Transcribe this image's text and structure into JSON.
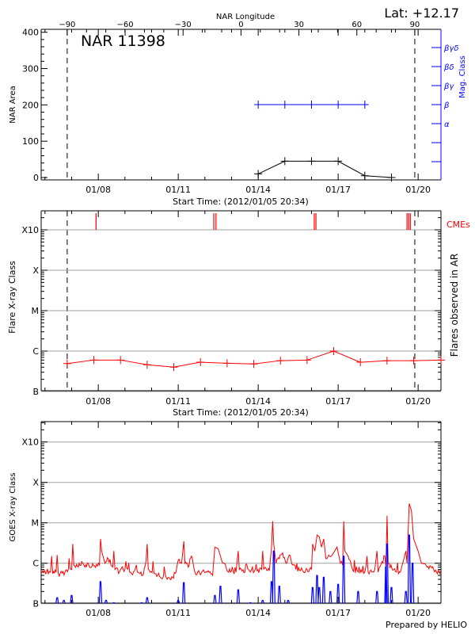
{
  "header": {
    "lat_label": "Lat: +12.17",
    "footer": "Prepared by HELIO"
  },
  "colors": {
    "area": "#000000",
    "mag": "#0000ff",
    "flare": "#ff0000",
    "cme": "#ff0000",
    "goes_long": "#ff0000",
    "goes_short": "#0000ff",
    "grid": "#a0a0a0"
  },
  "chart_data": [
    {
      "type": "line",
      "title": "NAR 11398",
      "xlabel": "Start Time: (2012/01/05 20:34)",
      "x_range": [
        "01/05 20:34",
        "01/20 20:34"
      ],
      "xticks": [
        "01/08",
        "01/11",
        "01/14",
        "01/17",
        "01/20"
      ],
      "x2label": "NAR Longitude",
      "x2ticks": [
        -90,
        -60,
        -30,
        0,
        30,
        60,
        90
      ],
      "limb_times": [
        "01/06 20:00",
        "01/19 21:00"
      ],
      "ylabel": "NAR Area",
      "ylim": [
        0,
        400
      ],
      "yticks": [
        0,
        100,
        200,
        300,
        400
      ],
      "y2label": "Mag. Class",
      "y2ticks": [
        "",
        "",
        "α",
        "β",
        "βγ",
        "βδ",
        "βγδ"
      ],
      "area": [
        [
          "01/14 00:00",
          10
        ],
        [
          "01/15 00:00",
          45
        ],
        [
          "01/16 00:00",
          45
        ],
        [
          "01/17 00:00",
          45
        ],
        [
          "01/18 00:00",
          5
        ],
        [
          "01/19 00:00",
          0
        ]
      ],
      "mag_class": [
        [
          "01/14 00:00",
          "β"
        ],
        [
          "01/15 00:00",
          "β"
        ],
        [
          "01/16 00:00",
          "β"
        ],
        [
          "01/17 00:00",
          "β"
        ],
        [
          "01/18 00:00",
          "β"
        ]
      ]
    },
    {
      "type": "line",
      "xlabel": "Start Time: (2012/01/05 20:34)",
      "xticks": [
        "01/08",
        "01/11",
        "01/14",
        "01/17",
        "01/20"
      ],
      "ylabel": "Flare X-ray Class",
      "y2label": "Flares observed in AR",
      "yticks": [
        "B",
        "C",
        "M",
        "X",
        "X10"
      ],
      "cme_label": "CMEs",
      "cmes": [
        "01/07 22:00",
        "01/12 08:00",
        "01/12 10:00",
        "01/16 02:30",
        "01/16 04:00",
        "01/19 14:00",
        "01/19 15:30",
        "01/19 17:00"
      ],
      "flares": [
        [
          "01/06 20:00",
          "B4.9"
        ],
        [
          "01/07 20:00",
          "B6.0"
        ],
        [
          "01/08 20:00",
          "B6.0"
        ],
        [
          "01/09 20:00",
          "B4.6"
        ],
        [
          "01/10 20:00",
          "B4.0"
        ],
        [
          "01/11 20:00",
          "B5.3"
        ],
        [
          "01/12 20:00",
          "B5.0"
        ],
        [
          "01/13 20:00",
          "B4.8"
        ],
        [
          "01/14 20:00",
          "B5.8"
        ],
        [
          "01/15 20:00",
          "B6.0"
        ],
        [
          "01/16 20:00",
          "C1.0"
        ],
        [
          "01/17 20:00",
          "B5.3"
        ],
        [
          "01/18 20:00",
          "B5.8"
        ],
        [
          "01/19 20:00",
          "B5.8"
        ],
        [
          "01/20 21:00",
          "B6.0"
        ]
      ]
    },
    {
      "type": "line",
      "xticks": [
        "01/08",
        "01/11",
        "01/14",
        "01/17",
        "01/20"
      ],
      "ylabel": "GOES X-ray Class",
      "yticks": [
        "B",
        "C",
        "M",
        "X",
        "X10"
      ],
      "goes_long": [
        [
          "01/05 20:34",
          "B6"
        ],
        [
          "01/06 03:00",
          "B5.5"
        ],
        [
          "01/06 05:00",
          "B6"
        ],
        [
          "01/06 06:00",
          "C1.5"
        ],
        [
          "01/06 07:00",
          "B5.5"
        ],
        [
          "01/06 10:00",
          "B6"
        ],
        [
          "01/06 11:00",
          "C1.6"
        ],
        [
          "01/06 12:00",
          "B5.5"
        ],
        [
          "01/06 18:00",
          "B6"
        ],
        [
          "01/06 21:00",
          "B7"
        ],
        [
          "01/07 00:00",
          "B7"
        ],
        [
          "01/07 01:00",
          "C3"
        ],
        [
          "01/07 02:00",
          "B9"
        ],
        [
          "01/07 06:00",
          "B8"
        ],
        [
          "01/07 09:00",
          "C1.1"
        ],
        [
          "01/07 12:00",
          "B8"
        ],
        [
          "01/07 15:00",
          "C1"
        ],
        [
          "01/07 18:00",
          "B8"
        ],
        [
          "01/08 01:00",
          "B9"
        ],
        [
          "01/08 02:00",
          "C4"
        ],
        [
          "01/08 03:00",
          "C2"
        ],
        [
          "01/08 06:00",
          "C1"
        ],
        [
          "01/08 09:00",
          "C1.3"
        ],
        [
          "01/08 13:00",
          "B8"
        ],
        [
          "01/08 14:00",
          "C2"
        ],
        [
          "01/08 15:00",
          "B7"
        ],
        [
          "01/08 19:00",
          "B6"
        ],
        [
          "01/09 00:00",
          "B7"
        ],
        [
          "01/09 06:00",
          "B5.5"
        ],
        [
          "01/09 12:00",
          "B6"
        ],
        [
          "01/09 16:00",
          "B5"
        ],
        [
          "01/09 19:00",
          "C1.2"
        ],
        [
          "01/09 20:00",
          "C3"
        ],
        [
          "01/09 21:00",
          "B7"
        ],
        [
          "01/10 03:00",
          "B5.5"
        ],
        [
          "01/10 08:00",
          "B4.5"
        ],
        [
          "01/10 14:00",
          "B4"
        ],
        [
          "01/10 19:00",
          "B4.5"
        ],
        [
          "01/10 22:00",
          "B6"
        ],
        [
          "01/11 00:00",
          "C1.2"
        ],
        [
          "01/11 03:00",
          "C1"
        ],
        [
          "01/11 05:00",
          "C3.5"
        ],
        [
          "01/11 06:00",
          "C1"
        ],
        [
          "01/11 09:00",
          "B8"
        ],
        [
          "01/11 12:00",
          "C1.5"
        ],
        [
          "01/11 15:00",
          "B6"
        ],
        [
          "01/11 21:00",
          "B6"
        ],
        [
          "01/12 03:00",
          "B6.5"
        ],
        [
          "01/12 07:00",
          "B5"
        ],
        [
          "01/12 09:00",
          "C2.5"
        ],
        [
          "01/12 12:00",
          "C2.3"
        ],
        [
          "01/12 15:00",
          "C1.2"
        ],
        [
          "01/12 19:00",
          "B8"
        ],
        [
          "01/12 23:00",
          "B6"
        ],
        [
          "01/13 04:00",
          "B6"
        ],
        [
          "01/13 06:00",
          "C2"
        ],
        [
          "01/13 07:00",
          "B7"
        ],
        [
          "01/13 12:00",
          "B6"
        ],
        [
          "01/13 18:00",
          "B7"
        ],
        [
          "01/13 23:00",
          "B6.5"
        ],
        [
          "01/14 03:00",
          "B7"
        ],
        [
          "01/14 04:00",
          "C2"
        ],
        [
          "01/14 05:00",
          "B7"
        ],
        [
          "01/14 10:00",
          "B6.5"
        ],
        [
          "01/14 12:00",
          "C2.5"
        ],
        [
          "01/14 13:00",
          "M1.1"
        ],
        [
          "01/14 14:00",
          "C3"
        ],
        [
          "01/14 16:00",
          "C1"
        ],
        [
          "01/14 19:00",
          "C1.3"
        ],
        [
          "01/14 22:00",
          "C1.8"
        ],
        [
          "01/15 01:00",
          "C1"
        ],
        [
          "01/15 04:00",
          "C1.6"
        ],
        [
          "01/15 07:00",
          "B9"
        ],
        [
          "01/15 10:00",
          "B7"
        ],
        [
          "01/15 14:00",
          "B6.5"
        ],
        [
          "01/15 20:00",
          "B7"
        ],
        [
          "01/16 00:00",
          "B7"
        ],
        [
          "01/16 01:00",
          "C3"
        ],
        [
          "01/16 03:00",
          "C2"
        ],
        [
          "01/16 05:00",
          "C5"
        ],
        [
          "01/16 07:00",
          "C4.5"
        ],
        [
          "01/16 09:00",
          "C2.5"
        ],
        [
          "01/16 11:00",
          "C4"
        ],
        [
          "01/16 13:00",
          "C1.3"
        ],
        [
          "01/16 18:00",
          "C1.5"
        ],
        [
          "01/16 23:00",
          "C2.5"
        ],
        [
          "01/17 02:00",
          "C1"
        ],
        [
          "01/17 04:00",
          "B9"
        ],
        [
          "01/17 05:00",
          "M1.1"
        ],
        [
          "01/17 06:00",
          "C2"
        ],
        [
          "01/17 09:00",
          "C1.5"
        ],
        [
          "01/17 13:00",
          "B7"
        ],
        [
          "01/17 18:00",
          "B6"
        ],
        [
          "01/18 00:00",
          "B6"
        ],
        [
          "01/18 02:00",
          "C1.5"
        ],
        [
          "01/18 03:00",
          "B6"
        ],
        [
          "01/18 09:00",
          "B7"
        ],
        [
          "01/18 11:00",
          "C2"
        ],
        [
          "01/18 12:00",
          "B6"
        ],
        [
          "01/18 18:00",
          "C1.5"
        ],
        [
          "01/18 19:00",
          "B8"
        ],
        [
          "01/18 20:00",
          "M1.5"
        ],
        [
          "01/18 21:00",
          "C1"
        ],
        [
          "01/19 02:00",
          "B7"
        ],
        [
          "01/19 08:00",
          "B6"
        ],
        [
          "01/19 13:00",
          "C2"
        ],
        [
          "01/19 14:00",
          "C1"
        ],
        [
          "01/19 16:00",
          "M3"
        ],
        [
          "01/19 18:00",
          "M2"
        ],
        [
          "01/19 20:00",
          "C4"
        ],
        [
          "01/20 00:00",
          "C2"
        ],
        [
          "01/20 03:00",
          "C1"
        ],
        [
          "01/20 08:00",
          "B8"
        ],
        [
          "01/20 14:00",
          "B7"
        ],
        [
          "01/20 20:34",
          "B5.5"
        ]
      ],
      "goes_short": [
        [
          "01/06 11:00",
          "B1.4"
        ],
        [
          "01/06 17:00",
          "B1.2"
        ],
        [
          "01/07 00:00",
          "B1.6"
        ],
        [
          "01/08 02:00",
          "B3.5"
        ],
        [
          "01/08 07:00",
          "B1.2"
        ],
        [
          "01/08 14:00",
          "B1.05"
        ],
        [
          "01/09 15:00",
          "B1.05"
        ],
        [
          "01/09 20:00",
          "B1.4"
        ],
        [
          "01/11 00:00",
          "B1.2"
        ],
        [
          "01/11 05:00",
          "B3.3"
        ],
        [
          "01/12 09:00",
          "B1.6"
        ],
        [
          "01/12 14:00",
          "B2.7"
        ],
        [
          "01/13 06:00",
          "B2.2"
        ],
        [
          "01/13 17:00",
          "B1.05"
        ],
        [
          "01/14 04:00",
          "B1.2"
        ],
        [
          "01/14 12:00",
          "B3.5"
        ],
        [
          "01/14 14:00",
          "C2"
        ],
        [
          "01/14 19:00",
          "B2.7"
        ],
        [
          "01/15 03:00",
          "B1.2"
        ],
        [
          "01/16 01:00",
          "B2.5"
        ],
        [
          "01/16 05:00",
          "B5"
        ],
        [
          "01/16 07:00",
          "B2.5"
        ],
        [
          "01/16 11:00",
          "B4.5"
        ],
        [
          "01/16 17:00",
          "B2"
        ],
        [
          "01/17 00:00",
          "B3"
        ],
        [
          "01/17 05:00",
          "C1.5"
        ],
        [
          "01/17 18:00",
          "B2"
        ],
        [
          "01/18 11:00",
          "B2"
        ],
        [
          "01/18 19:00",
          "B8"
        ],
        [
          "01/18 20:00",
          "C3"
        ],
        [
          "01/19 00:00",
          "B2.5"
        ],
        [
          "01/19 13:00",
          "B2"
        ],
        [
          "01/19 16:00",
          "C5"
        ],
        [
          "01/19 19:00",
          "C1"
        ]
      ]
    }
  ]
}
